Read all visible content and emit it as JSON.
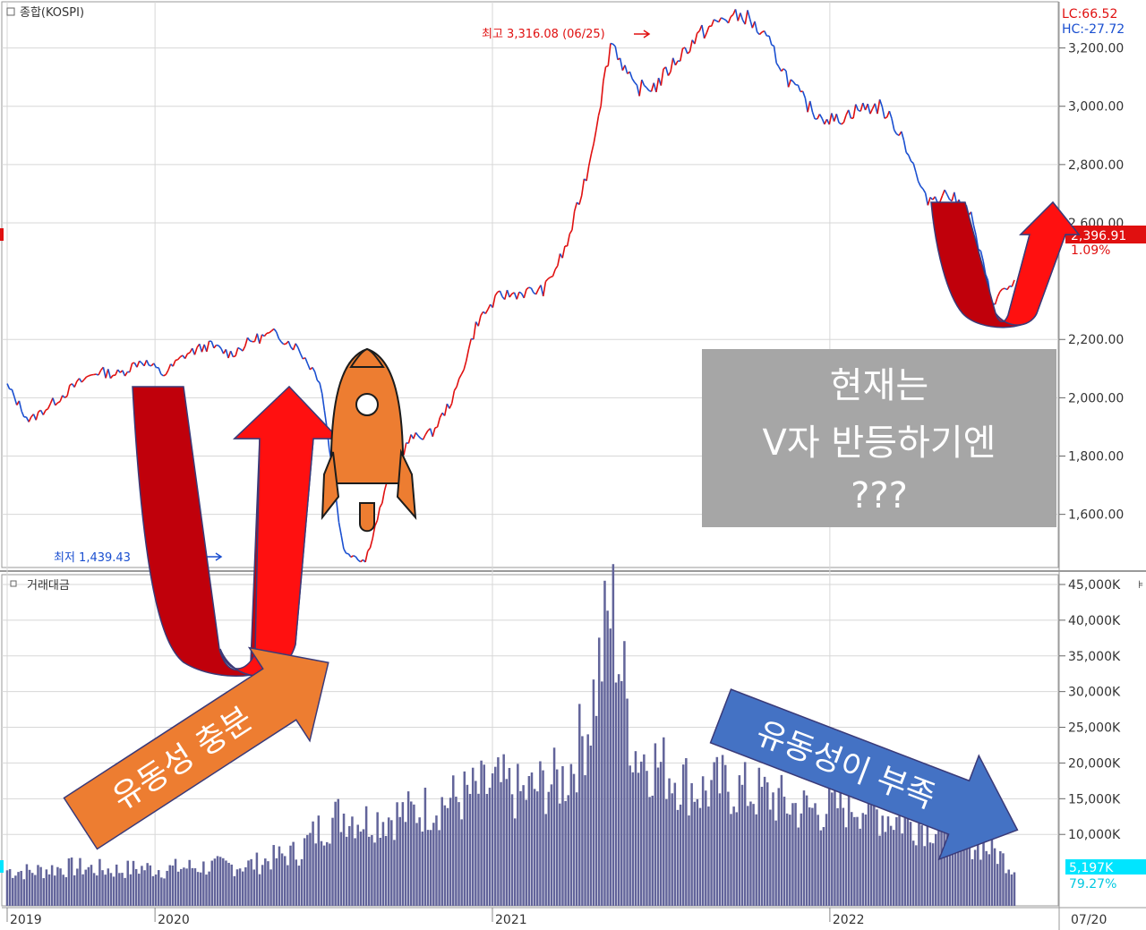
{
  "chart_data": [
    {
      "type": "line",
      "title": "종합(KOSPI)",
      "x_labels": [
        "2019",
        "2020",
        "2021",
        "2022",
        "07/20"
      ],
      "ylim": [
        1430,
        3340
      ],
      "y_ticks": [
        "3,200.00",
        "3,000.00",
        "2,800.00",
        "2,600.00",
        "2,200.00",
        "2,000.00",
        "1,800.00",
        "1,600.00"
      ],
      "y_tick_values": [
        3200,
        3000,
        2800,
        2600,
        2200,
        2000,
        1800,
        1600
      ],
      "lc_label": "LC:66.52",
      "hc_label": "HC:-27.72",
      "current_value_label": "2,396.91",
      "current_change_label": "1.09%",
      "current_value": 2396.91,
      "high_label": "최고 3,316.08 (06/25)",
      "low_label": "최저 1,439.43",
      "high_value": 3316.08,
      "low_value": 1439.43,
      "colors": {
        "up": "#e01010",
        "down": "#1a4fd0",
        "marker_current": "#e01010"
      },
      "series": [
        {
          "x": [
            "2019-01",
            "2019-02",
            "2019-03",
            "2019-04",
            "2019-05",
            "2019-06",
            "2019-07",
            "2019-08",
            "2019-09",
            "2019-10",
            "2019-11",
            "2019-12",
            "2020-01",
            "2020-02",
            "2020-03a",
            "2020-03b",
            "2020-03c",
            "2020-04",
            "2020-05",
            "2020-06",
            "2020-07",
            "2020-08",
            "2020-09",
            "2020-10",
            "2020-11",
            "2020-12",
            "2021-01",
            "2021-02",
            "2021-03",
            "2021-04",
            "2021-05",
            "2021-06",
            "2021-07",
            "2021-08",
            "2021-09",
            "2021-10",
            "2021-11",
            "2021-12",
            "2022-01",
            "2022-02",
            "2022-03",
            "2022-04",
            "2022-05",
            "2022-06a",
            "2022-06b",
            "2022-07"
          ],
          "values": [
            2040,
            1920,
            1980,
            2040,
            2090,
            2080,
            2130,
            2080,
            2150,
            2180,
            2150,
            2200,
            2220,
            2170,
            2060,
            1480,
            1439,
            1710,
            1860,
            1880,
            2010,
            2260,
            2350,
            2360,
            2370,
            2520,
            2800,
            3230,
            3060,
            3070,
            3170,
            3250,
            3300,
            3310,
            3220,
            3080,
            2980,
            2950,
            2990,
            3000,
            2900,
            2680,
            2700,
            2640,
            2330,
            2397
          ]
        }
      ]
    },
    {
      "type": "bar",
      "title": "거래대금",
      "x_labels": [
        "2019",
        "2020",
        "2021",
        "2022",
        "07/20"
      ],
      "ylim": [
        0,
        46000
      ],
      "y_ticks": [
        "45,000K",
        "40,000K",
        "35,000K",
        "30,000K",
        "25,000K",
        "20,000K",
        "15,000K",
        "10,000K"
      ],
      "y_tick_values": [
        45000,
        40000,
        35000,
        30000,
        25000,
        20000,
        15000,
        10000
      ],
      "current_value_label": "5,197K",
      "current_change_label": "79.27%",
      "current_value": 5197,
      "colors": {
        "bar": "#62649a",
        "marker_current": "#00e5ff"
      },
      "series": [
        {
          "x": [
            "2019-01",
            "2019-02",
            "2019-03",
            "2019-04",
            "2019-05",
            "2019-06",
            "2019-07",
            "2019-08",
            "2019-09",
            "2019-10",
            "2019-11",
            "2019-12",
            "2020-01",
            "2020-02",
            "2020-03a",
            "2020-03b",
            "2020-03c",
            "2020-04",
            "2020-05",
            "2020-06",
            "2020-07",
            "2020-08",
            "2020-09",
            "2020-10",
            "2020-11",
            "2020-12",
            "2021-01",
            "2021-02",
            "2021-03",
            "2021-04",
            "2021-05",
            "2021-06",
            "2021-07",
            "2021-08",
            "2021-09",
            "2021-10",
            "2021-11",
            "2021-12",
            "2022-01",
            "2022-02",
            "2022-03",
            "2022-04",
            "2022-05",
            "2022-06a",
            "2022-06b",
            "2022-07"
          ],
          "values": [
            5000,
            4800,
            5200,
            5400,
            5200,
            5000,
            5300,
            5100,
            5400,
            5500,
            5600,
            5800,
            6800,
            7500,
            11000,
            13000,
            12000,
            12500,
            13000,
            14000,
            15000,
            16000,
            17000,
            15500,
            17000,
            18000,
            26000,
            42000,
            22000,
            20000,
            18000,
            16000,
            17000,
            16000,
            15500,
            14000,
            13500,
            14000,
            14500,
            13000,
            12000,
            11500,
            11000,
            9000,
            8000,
            5197
          ]
        }
      ]
    }
  ],
  "annotations": {
    "question_box": {
      "line1": "현재는",
      "line2": "V자 반등하기엔",
      "line3": "???"
    },
    "liquidity_enough": "유동성 충분",
    "liquidity_short": "유동성이 부족"
  }
}
